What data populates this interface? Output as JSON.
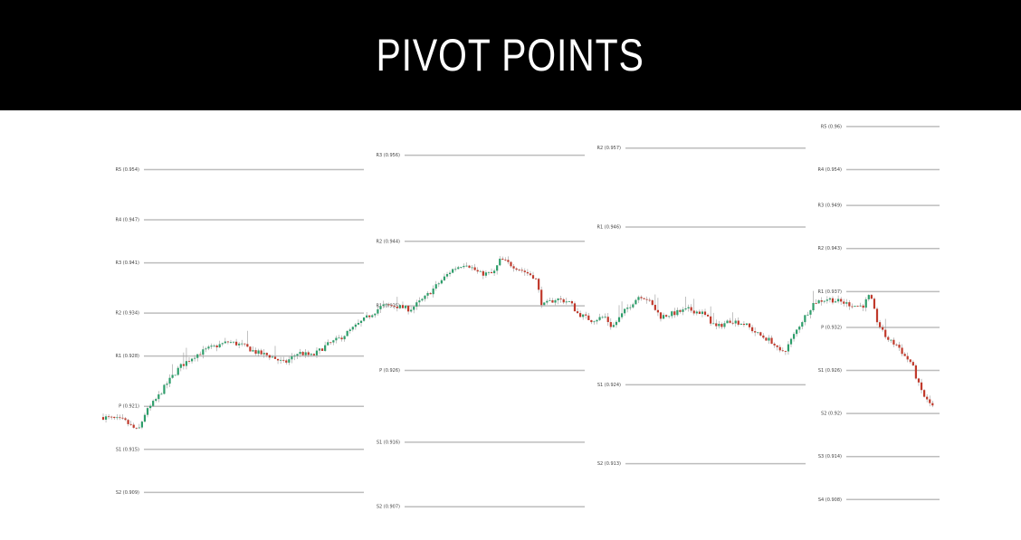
{
  "title": "PIVOT POINTS",
  "colors": {
    "header_bg": "#000000",
    "header_text": "#ffffff",
    "level_line": "#bdbdbd",
    "candle_up": "#2e9e6b",
    "candle_down": "#c0392b"
  },
  "chart_data": {
    "type": "candlestick-with-pivot-levels",
    "title": "PIVOT POINTS",
    "xlabel": "",
    "ylabel": "",
    "ylim": [
      0.904,
      0.961
    ],
    "grid": false,
    "periods": [
      {
        "levels": [
          {
            "label": "R5 (0.954)",
            "value": 0.954
          },
          {
            "label": "R4 (0.947)",
            "value": 0.947
          },
          {
            "label": "R3 (0.941)",
            "value": 0.941
          },
          {
            "label": "R2 (0.934)",
            "value": 0.934
          },
          {
            "label": "R1 (0.928)",
            "value": 0.928
          },
          {
            "label": "P (0.921)",
            "value": 0.921
          },
          {
            "label": "S1 (0.915)",
            "value": 0.915
          },
          {
            "label": "S2 (0.909)",
            "value": 0.909
          }
        ]
      },
      {
        "levels": [
          {
            "label": "R3 (0.956)",
            "value": 0.956
          },
          {
            "label": "R2 (0.944)",
            "value": 0.944
          },
          {
            "label": "R1 (0.935)",
            "value": 0.935
          },
          {
            "label": "P (0.926)",
            "value": 0.926
          },
          {
            "label": "S1 (0.916)",
            "value": 0.916
          },
          {
            "label": "S2 (0.907)",
            "value": 0.907
          }
        ]
      },
      {
        "levels": [
          {
            "label": "R2 (0.957)",
            "value": 0.957
          },
          {
            "label": "R1 (0.946)",
            "value": 0.946
          },
          {
            "label": "S1 (0.924)",
            "value": 0.924
          },
          {
            "label": "S2 (0.913)",
            "value": 0.913
          }
        ]
      },
      {
        "levels": [
          {
            "label": "R5 (0.96)",
            "value": 0.96
          },
          {
            "label": "R4 (0.954)",
            "value": 0.954
          },
          {
            "label": "R3 (0.949)",
            "value": 0.949
          },
          {
            "label": "R2 (0.943)",
            "value": 0.943
          },
          {
            "label": "R1 (0.937)",
            "value": 0.937
          },
          {
            "label": "P (0.932)",
            "value": 0.932
          },
          {
            "label": "S1 (0.926)",
            "value": 0.926
          },
          {
            "label": "S2 (0.92)",
            "value": 0.92
          },
          {
            "label": "S3 (0.914)",
            "value": 0.914
          },
          {
            "label": "S4 (0.908)",
            "value": 0.908
          }
        ]
      }
    ],
    "price_path": [
      [
        0,
        0.9195
      ],
      [
        3,
        0.919
      ],
      [
        5,
        0.9175
      ],
      [
        6,
        0.92
      ],
      [
        8,
        0.9225
      ],
      [
        9,
        0.924
      ],
      [
        11,
        0.9265
      ],
      [
        13,
        0.928
      ],
      [
        15,
        0.929
      ],
      [
        18,
        0.93
      ],
      [
        20,
        0.9295
      ],
      [
        22,
        0.9285
      ],
      [
        24,
        0.928
      ],
      [
        26,
        0.927
      ],
      [
        28,
        0.9285
      ],
      [
        30,
        0.928
      ],
      [
        32,
        0.9295
      ],
      [
        34,
        0.9305
      ],
      [
        36,
        0.932
      ],
      [
        38,
        0.9335
      ],
      [
        40,
        0.935
      ],
      [
        42,
        0.935
      ],
      [
        44,
        0.9345
      ],
      [
        46,
        0.936
      ],
      [
        48,
        0.938
      ],
      [
        50,
        0.94
      ],
      [
        52,
        0.941
      ],
      [
        54,
        0.9395
      ],
      [
        56,
        0.9395
      ],
      [
        57,
        0.9415
      ],
      [
        58,
        0.941
      ],
      [
        60,
        0.94
      ],
      [
        62,
        0.939
      ],
      [
        63,
        0.935
      ],
      [
        65,
        0.936
      ],
      [
        67,
        0.9355
      ],
      [
        68,
        0.934
      ],
      [
        70,
        0.933
      ],
      [
        72,
        0.9335
      ],
      [
        73,
        0.932
      ],
      [
        75,
        0.9345
      ],
      [
        77,
        0.9365
      ],
      [
        78,
        0.936
      ],
      [
        80,
        0.9335
      ],
      [
        82,
        0.934
      ],
      [
        84,
        0.9345
      ],
      [
        86,
        0.934
      ],
      [
        88,
        0.932
      ],
      [
        90,
        0.933
      ],
      [
        92,
        0.9325
      ],
      [
        94,
        0.931
      ],
      [
        96,
        0.93
      ],
      [
        97,
        0.9285
      ],
      [
        98,
        0.929
      ],
      [
        100,
        0.9325
      ],
      [
        102,
        0.9355
      ],
      [
        104,
        0.936
      ],
      [
        106,
        0.9355
      ],
      [
        108,
        0.935
      ],
      [
        109,
        0.935
      ],
      [
        110,
        0.9365
      ],
      [
        111,
        0.933
      ],
      [
        112,
        0.931
      ],
      [
        113,
        0.93
      ],
      [
        114,
        0.9295
      ],
      [
        115,
        0.928
      ],
      [
        116,
        0.927
      ],
      [
        117,
        0.924
      ],
      [
        118,
        0.922
      ],
      [
        119,
        0.921
      ]
    ],
    "x_range": [
      0,
      120
    ],
    "volatility": 0.0009
  }
}
